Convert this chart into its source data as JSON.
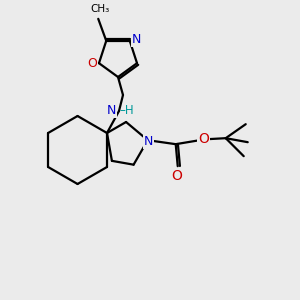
{
  "background_color": "#ebebeb",
  "atom_colors": {
    "C": "#000000",
    "N": "#0000cc",
    "O": "#cc0000",
    "H": "#009999"
  },
  "figsize": [
    3.0,
    3.0
  ],
  "dpi": 100,
  "lw": 1.6
}
